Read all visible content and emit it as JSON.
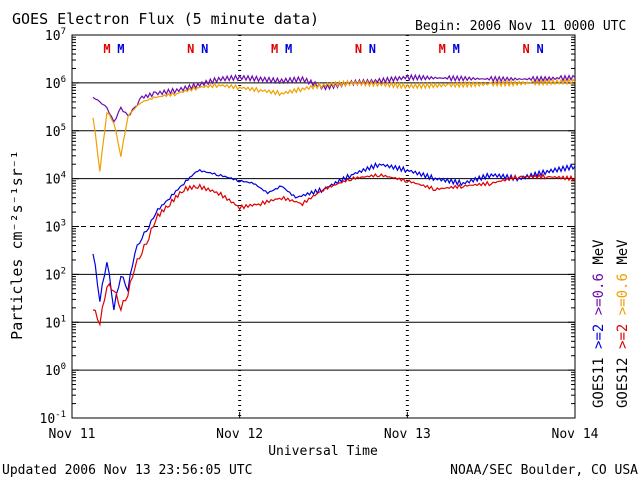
{
  "chart_data": {
    "type": "line",
    "title": "GOES Electron Flux (5 minute data)",
    "begin_label": "Begin: 2006 Nov 11 0000 UTC",
    "xlabel": "Universal Time",
    "ylabel": "Particles cm⁻²s⁻¹sr⁻¹",
    "y_scale": "log",
    "ylim": [
      0.1,
      10000000
    ],
    "y_ticks": [
      {
        "base": "10",
        "exp": "7",
        "value": 10000000
      },
      {
        "base": "10",
        "exp": "6",
        "value": 1000000
      },
      {
        "base": "10",
        "exp": "5",
        "value": 100000
      },
      {
        "base": "10",
        "exp": "4",
        "value": 10000
      },
      {
        "base": "10",
        "exp": "3",
        "value": 1000
      },
      {
        "base": "10",
        "exp": "2",
        "value": 100
      },
      {
        "base": "10",
        "exp": "1",
        "value": 10
      },
      {
        "base": "10",
        "exp": "0",
        "value": 1
      },
      {
        "base": "10",
        "exp": "-1",
        "value": 0.1
      }
    ],
    "xlim": [
      "2006-11-11 00:00",
      "2006-11-14 00:00"
    ],
    "x_ticks": [
      {
        "label": "Nov 11",
        "day": "2006-11-11"
      },
      {
        "label": "Nov 12",
        "day": "2006-11-12"
      },
      {
        "label": "Nov 13",
        "day": "2006-11-13"
      },
      {
        "label": "Nov 14",
        "day": "2006-11-14"
      }
    ],
    "reference_lines": [
      {
        "value": 1000000,
        "style": "solid"
      },
      {
        "value": 100000,
        "style": "solid"
      },
      {
        "value": 10000,
        "style": "solid"
      },
      {
        "value": 1000,
        "style": "dashed"
      },
      {
        "value": 100,
        "style": "solid"
      },
      {
        "value": 10,
        "style": "solid"
      },
      {
        "value": 1,
        "style": "solid"
      }
    ],
    "mn_markers": [
      {
        "label": "M",
        "time": "2006-11-11 05:00",
        "color": "#e00000"
      },
      {
        "label": "M",
        "time": "2006-11-11 07:00",
        "color": "#0000e0"
      },
      {
        "label": "N",
        "time": "2006-11-11 17:00",
        "color": "#e00000"
      },
      {
        "label": "N",
        "time": "2006-11-11 19:00",
        "color": "#0000e0"
      },
      {
        "label": "M",
        "time": "2006-11-12 05:00",
        "color": "#e00000"
      },
      {
        "label": "M",
        "time": "2006-11-12 07:00",
        "color": "#0000e0"
      },
      {
        "label": "N",
        "time": "2006-11-12 17:00",
        "color": "#e00000"
      },
      {
        "label": "N",
        "time": "2006-11-12 19:00",
        "color": "#0000e0"
      },
      {
        "label": "M",
        "time": "2006-11-13 05:00",
        "color": "#e00000"
      },
      {
        "label": "M",
        "time": "2006-11-13 07:00",
        "color": "#0000e0"
      },
      {
        "label": "N",
        "time": "2006-11-13 17:00",
        "color": "#e00000"
      },
      {
        "label": "N",
        "time": "2006-11-13 19:00",
        "color": "#0000e0"
      }
    ],
    "series": [
      {
        "name": "GOES11 >=0.6 MeV",
        "color": "#6a0dad",
        "x": [
          "2006-11-11 03:00",
          "2006-11-11 04:00",
          "2006-11-11 05:00",
          "2006-11-11 06:00",
          "2006-11-11 07:00",
          "2006-11-11 08:00",
          "2006-11-11 09:00",
          "2006-11-11 10:00",
          "2006-11-11 12:00",
          "2006-11-11 15:00",
          "2006-11-11 18:00",
          "2006-11-11 21:00",
          "2006-11-12 00:00",
          "2006-11-12 03:00",
          "2006-11-12 06:00",
          "2006-11-12 09:00",
          "2006-11-12 12:00",
          "2006-11-12 16:00",
          "2006-11-12 20:00",
          "2006-11-13 00:00",
          "2006-11-13 06:00",
          "2006-11-13 12:00",
          "2006-11-13 18:00",
          "2006-11-13 22:00",
          "2006-11-14 00:00"
        ],
        "y": [
          500000,
          400000,
          300000,
          150000,
          300000,
          200000,
          300000,
          500000,
          600000,
          700000,
          900000,
          1200000,
          1300000,
          1200000,
          1100000,
          1200000,
          800000,
          1000000,
          1100000,
          1300000,
          1250000,
          1200000,
          1200000,
          1250000,
          1300000
        ]
      },
      {
        "name": "GOES12 >=0.6 MeV",
        "color": "#f0a000",
        "x": [
          "2006-11-11 03:00",
          "2006-11-11 04:00",
          "2006-11-11 05:00",
          "2006-11-11 06:00",
          "2006-11-11 07:00",
          "2006-11-11 08:00",
          "2006-11-11 09:00",
          "2006-11-11 10:00",
          "2006-11-11 12:00",
          "2006-11-11 15:00",
          "2006-11-11 18:00",
          "2006-11-11 21:00",
          "2006-11-12 00:00",
          "2006-11-12 03:00",
          "2006-11-12 06:00",
          "2006-11-12 09:00",
          "2006-11-12 12:00",
          "2006-11-12 16:00",
          "2006-11-12 20:00",
          "2006-11-13 00:00",
          "2006-11-13 06:00",
          "2006-11-13 12:00",
          "2006-11-13 18:00",
          "2006-11-13 22:00",
          "2006-11-14 00:00"
        ],
        "y": [
          200000,
          15000,
          250000,
          150000,
          30000,
          200000,
          300000,
          400000,
          500000,
          600000,
          800000,
          900000,
          800000,
          700000,
          600000,
          750000,
          900000,
          1000000,
          950000,
          850000,
          900000,
          950000,
          1000000,
          1050000,
          1050000
        ]
      },
      {
        "name": "GOES11 >=2 MeV",
        "color": "#0000e0",
        "x": [
          "2006-11-11 03:00",
          "2006-11-11 04:00",
          "2006-11-11 05:00",
          "2006-11-11 06:00",
          "2006-11-11 07:00",
          "2006-11-11 08:00",
          "2006-11-11 09:00",
          "2006-11-11 10:00",
          "2006-11-11 11:00",
          "2006-11-11 12:00",
          "2006-11-11 14:00",
          "2006-11-11 16:00",
          "2006-11-11 18:00",
          "2006-11-11 21:00",
          "2006-11-12 00:00",
          "2006-11-12 02:00",
          "2006-11-12 04:00",
          "2006-11-12 06:00",
          "2006-11-12 08:00",
          "2006-11-12 12:00",
          "2006-11-12 16:00",
          "2006-11-12 20:00",
          "2006-11-13 00:00",
          "2006-11-13 04:00",
          "2006-11-13 08:00",
          "2006-11-13 12:00",
          "2006-11-13 16:00",
          "2006-11-13 20:00",
          "2006-11-14 00:00"
        ],
        "y": [
          300,
          30,
          200,
          20,
          100,
          50,
          300,
          600,
          1000,
          2000,
          4000,
          8000,
          15000,
          12000,
          9000,
          8000,
          5000,
          7000,
          4000,
          6000,
          12000,
          20000,
          15000,
          10000,
          8000,
          12000,
          10000,
          14000,
          18000
        ]
      },
      {
        "name": "GOES12 >=2 MeV",
        "color": "#e00000",
        "x": [
          "2006-11-11 03:00",
          "2006-11-11 04:00",
          "2006-11-11 05:00",
          "2006-11-11 06:00",
          "2006-11-11 07:00",
          "2006-11-11 08:00",
          "2006-11-11 09:00",
          "2006-11-11 10:00",
          "2006-11-11 11:00",
          "2006-11-11 12:00",
          "2006-11-11 14:00",
          "2006-11-11 16:00",
          "2006-11-11 18:00",
          "2006-11-11 21:00",
          "2006-11-12 00:00",
          "2006-11-12 03:00",
          "2006-11-12 06:00",
          "2006-11-12 09:00",
          "2006-11-12 12:00",
          "2006-11-12 16:00",
          "2006-11-12 20:00",
          "2006-11-13 00:00",
          "2006-11-13 04:00",
          "2006-11-13 08:00",
          "2006-11-13 12:00",
          "2006-11-13 16:00",
          "2006-11-13 20:00",
          "2006-11-14 00:00"
        ],
        "y": [
          20,
          10,
          60,
          50,
          20,
          40,
          150,
          300,
          600,
          1500,
          3000,
          6000,
          7000,
          5000,
          2500,
          3000,
          4000,
          3000,
          6000,
          10000,
          12000,
          9000,
          6000,
          7000,
          8000,
          11000,
          11000,
          10000
        ]
      }
    ],
    "legend": [
      {
        "label": "GOES11",
        "color": "#000000"
      },
      {
        "label": ">=2",
        "color": "#0000e0"
      },
      {
        "label": ">=0.6",
        "color": "#6a0dad"
      },
      {
        "label": "MeV",
        "color": "#000000"
      },
      {
        "label": "GOES12",
        "color": "#000000"
      },
      {
        "label": ">=2",
        "color": "#e00000"
      },
      {
        "label": ">=0.6",
        "color": "#f0a000"
      },
      {
        "label": "MeV",
        "color": "#000000"
      }
    ]
  },
  "footer": {
    "updated": "Updated 2006 Nov 13 23:56:05 UTC",
    "credit": "NOAA/SEC Boulder, CO USA"
  }
}
